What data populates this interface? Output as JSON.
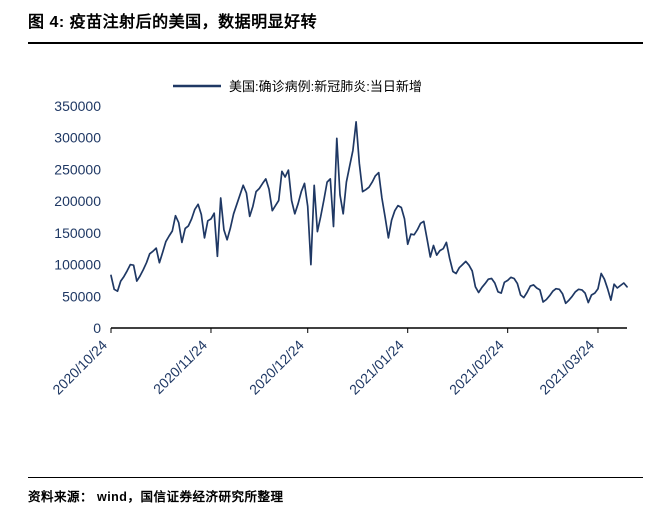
{
  "header": {
    "title": "图 4:  疫苗注射后的美国，数据明显好转"
  },
  "footer": {
    "source": "资料来源： wind，国信证券经济研究所整理"
  },
  "chart_data": {
    "type": "line",
    "title": "图 4: 疫苗注射后的美国，数据明显好转",
    "legend": [
      "美国:确诊病例:新冠肺炎:当日新增"
    ],
    "line_color": "#1F3864",
    "axis_color": "#000000",
    "tick_label_color": "#1F3864",
    "xlabel": "",
    "ylabel": "",
    "ylim": [
      0,
      350000
    ],
    "ytick_step": 50000,
    "grid": false,
    "legend_position": "top-center",
    "x_start_date": "2020/10/24",
    "x_ticks": [
      {
        "index": 0,
        "label": "2020/10/24"
      },
      {
        "index": 31,
        "label": "2020/11/24"
      },
      {
        "index": 61,
        "label": "2020/12/24"
      },
      {
        "index": 92,
        "label": "2021/01/24"
      },
      {
        "index": 123,
        "label": "2021/02/24"
      },
      {
        "index": 151,
        "label": "2021/03/24"
      }
    ],
    "values": [
      83000,
      61000,
      58000,
      74000,
      81000,
      90000,
      100000,
      99000,
      74000,
      82000,
      92000,
      103000,
      117000,
      121000,
      126000,
      103000,
      119000,
      136000,
      145000,
      153000,
      177000,
      166000,
      135000,
      157000,
      161000,
      172000,
      187000,
      195000,
      179000,
      142000,
      169000,
      172000,
      181000,
      113000,
      205000,
      155000,
      139000,
      157000,
      180000,
      195000,
      210000,
      225000,
      213000,
      176000,
      192000,
      215000,
      220000,
      228000,
      235000,
      219000,
      185000,
      193000,
      201000,
      247000,
      238000,
      249000,
      201000,
      180000,
      196000,
      215000,
      228000,
      192000,
      100000,
      225000,
      152000,
      175000,
      202000,
      230000,
      235000,
      160000,
      299000,
      210000,
      180000,
      230000,
      255000,
      280000,
      325000,
      260000,
      215000,
      218000,
      222000,
      230000,
      240000,
      245000,
      205000,
      175000,
      142000,
      170000,
      185000,
      193000,
      190000,
      172000,
      132000,
      148000,
      147000,
      155000,
      165000,
      168000,
      140000,
      112000,
      130000,
      115000,
      122000,
      125000,
      135000,
      110000,
      89000,
      86000,
      95000,
      100000,
      105000,
      99000,
      90000,
      65000,
      56000,
      64000,
      70000,
      77000,
      78000,
      71000,
      57000,
      55000,
      72000,
      75000,
      80000,
      78000,
      70000,
      52000,
      48000,
      56000,
      66000,
      68000,
      63000,
      60000,
      41000,
      45000,
      51000,
      58000,
      62000,
      61000,
      54000,
      39000,
      44000,
      50000,
      57000,
      61000,
      60000,
      55000,
      40000,
      52000,
      55000,
      62000,
      86000,
      77000,
      62000,
      44000,
      69000,
      63000,
      67000,
      71000,
      65000
    ]
  }
}
